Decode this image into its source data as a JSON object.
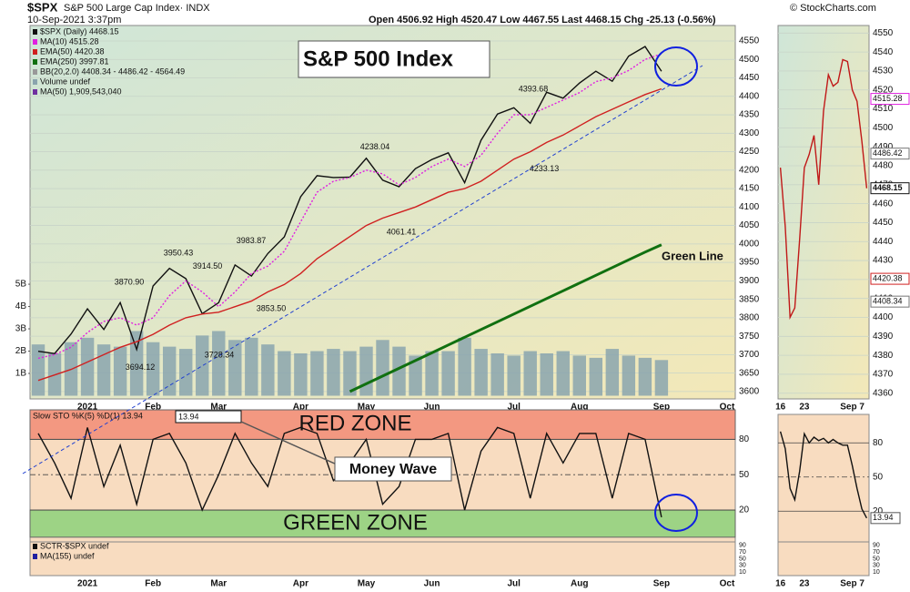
{
  "header": {
    "symbol": "$SPX",
    "name": "S&P 500 Large Cap Index· INDX",
    "datetime": "10-Sep-2021 3:37pm",
    "quote": "Open 4506.92  High 4520.47  Low 4467.55  Last 4468.15  Chg -25.13 (-0.56%)",
    "source": "© StockCharts.com"
  },
  "chart_data": [
    {
      "type": "line",
      "title": "S&P 500 Index",
      "categories": [
        null,
        null,
        null,
        "2021",
        null,
        null,
        null,
        "Feb",
        null,
        null,
        null,
        "Mar",
        null,
        null,
        null,
        null,
        "Apr",
        null,
        null,
        null,
        "May",
        null,
        null,
        null,
        "Jun",
        null,
        null,
        null,
        null,
        "Jul",
        null,
        null,
        null,
        "Aug",
        null,
        null,
        null,
        null,
        "Sep",
        null,
        null,
        null,
        "Oct"
      ],
      "series": [
        {
          "name": "$SPX (Daily) 4468.15",
          "color": "#111111",
          "values": [
            3709,
            3703,
            3756,
            3824,
            3768,
            3841,
            3714,
            3886,
            3934,
            3906,
            3811,
            3841,
            3943,
            3913,
            3974,
            4019,
            4128,
            4185,
            4180,
            4181,
            4232,
            4173,
            4155,
            4204,
            4229,
            4247,
            4166,
            4281,
            4352,
            4369,
            4327,
            4411,
            4395,
            4436,
            4468,
            4441,
            4509,
            4535,
            4468.15,
            null,
            null,
            null,
            null
          ]
        },
        {
          "name": "MA(10) 4515.28",
          "color": "#e020e0",
          "dashed": true,
          "values": [
            3690,
            3700,
            3720,
            3760,
            3790,
            3800,
            3780,
            3800,
            3860,
            3900,
            3870,
            3830,
            3870,
            3920,
            3940,
            3980,
            4060,
            4140,
            4170,
            4180,
            4200,
            4190,
            4160,
            4180,
            4210,
            4230,
            4210,
            4240,
            4300,
            4350,
            4350,
            4370,
            4390,
            4410,
            4440,
            4450,
            4470,
            4500,
            4515.28,
            null,
            null,
            null,
            null
          ]
        },
        {
          "name": "EMA(50) 4420.38",
          "color": "#d02020",
          "values": [
            3630,
            3645,
            3660,
            3680,
            3700,
            3720,
            3735,
            3755,
            3780,
            3800,
            3810,
            3815,
            3830,
            3845,
            3870,
            3890,
            3920,
            3960,
            3990,
            4020,
            4050,
            4070,
            4085,
            4100,
            4120,
            4140,
            4150,
            4170,
            4200,
            4230,
            4250,
            4275,
            4295,
            4320,
            4345,
            4365,
            4385,
            4405,
            4420.38,
            null,
            null,
            null,
            null
          ]
        },
        {
          "name": "EMA(250) 3997.81",
          "color": "#107010",
          "width": 3,
          "values": [
            null,
            null,
            null,
            null,
            null,
            null,
            null,
            null,
            null,
            null,
            null,
            null,
            null,
            null,
            null,
            null,
            null,
            null,
            null,
            3600,
            3621,
            3642,
            3663,
            3684,
            3705,
            3726,
            3747,
            3768,
            3789,
            3810,
            3831,
            3852,
            3873,
            3894,
            3915,
            3936,
            3957,
            3978,
            3997.81,
            null,
            null,
            null,
            null
          ]
        }
      ],
      "volume": {
        "name": "Volume undef",
        "color": "#8aa4ae",
        "axis": "y2",
        "values": [
          2300000000,
          1900000000,
          2400000000,
          2600000000,
          2300000000,
          2200000000,
          2900000000,
          2400000000,
          2200000000,
          2100000000,
          2700000000,
          2900000000,
          2500000000,
          2600000000,
          2300000000,
          2000000000,
          1900000000,
          2000000000,
          2100000000,
          2000000000,
          2200000000,
          2500000000,
          2200000000,
          1800000000,
          2000000000,
          2000000000,
          2600000000,
          2100000000,
          1900000000,
          1800000000,
          2000000000,
          1900000000,
          2000000000,
          1800000000,
          1700000000,
          2100000000,
          1800000000,
          1700000000,
          1600000000,
          null,
          null,
          null,
          null
        ]
      },
      "legend_notes": [
        "BB(20,2.0) 4408.34 - 4486.42 - 4564.49",
        "MA(50) 1,909,543,040"
      ],
      "legend_note_colors": [
        "#999999",
        "#7030a0"
      ],
      "ylim": [
        3580,
        4592
      ],
      "yticks": [
        3600,
        3650,
        3700,
        3750,
        3800,
        3850,
        3900,
        3950,
        4000,
        4050,
        4100,
        4150,
        4200,
        4250,
        4300,
        4350,
        4400,
        4450,
        4500,
        4550
      ],
      "y2lim": [
        0,
        16600000000
      ],
      "y2ticks": [
        {
          "value": 1000000000,
          "label": "1B"
        },
        {
          "value": 2000000000,
          "label": "2B"
        },
        {
          "value": 3000000000,
          "label": "3B"
        },
        {
          "value": 4000000000,
          "label": "4B"
        },
        {
          "value": 5000000000,
          "label": "5B"
        }
      ],
      "grid": true,
      "price_labels": [
        {
          "value": 3870.9,
          "label": "3870.90"
        },
        3950.43,
        {
          "value": 3914.5,
          "label": "3914.50"
        },
        3983.87,
        {
          "value": 3853.5,
          "label": "3853.50"
        },
        3728.34,
        3694.12,
        4238.04,
        4061.41,
        4393.68,
        4233.13
      ],
      "annotation": "Green Line"
    },
    {
      "type": "line",
      "series": [
        {
          "name": "Slow STO %K(5) %D(1) 13.94",
          "color": "#111111",
          "values": [
            85,
            60,
            30,
            90,
            40,
            75,
            25,
            80,
            85,
            60,
            20,
            50,
            85,
            60,
            40,
            85,
            90,
            85,
            45,
            60,
            80,
            25,
            40,
            80,
            80,
            85,
            20,
            70,
            90,
            85,
            30,
            85,
            60,
            85,
            85,
            30,
            85,
            80,
            13.94,
            null,
            null,
            null,
            null
          ]
        }
      ],
      "zones": [
        {
          "label": "RED ZONE",
          "range": [
            80,
            105
          ],
          "color": "#f2907a",
          "label_color": "#e02020"
        },
        {
          "label": "GREEN ZONE",
          "range": [
            -3,
            20
          ],
          "color": "#92d27e",
          "label_color": "#207020"
        }
      ],
      "ylim": [
        -7,
        105
      ],
      "yticks": [
        20,
        50,
        80
      ],
      "grid": true,
      "annotation": "Money Wave"
    },
    {
      "type": "line",
      "categories": [
        null,
        null,
        null,
        "2021",
        null,
        null,
        null,
        "Feb",
        null,
        null,
        null,
        "Mar",
        null,
        null,
        null,
        null,
        "Apr",
        null,
        null,
        null,
        "May",
        null,
        null,
        null,
        "Jun",
        null,
        null,
        null,
        null,
        "Jul",
        null,
        null,
        null,
        "Aug",
        null,
        null,
        null,
        null,
        "Sep",
        null,
        null,
        null,
        "Oct"
      ],
      "legend": [
        "SCTR-$SPX undef",
        "MA(155) undef"
      ],
      "legend_colors": [
        "#111111",
        "#2020a0"
      ],
      "ylim": [
        0,
        100
      ],
      "yticks": [
        90,
        70,
        50,
        30,
        10
      ]
    },
    {
      "type": "line",
      "categories": [
        "16",
        null,
        null,
        null,
        null,
        "23",
        null,
        null,
        null,
        null,
        null,
        null,
        null,
        null,
        null,
        "Sep 7",
        null,
        null,
        null
      ],
      "values": [
        4479,
        4448,
        4400,
        4405,
        4441,
        4479,
        4486,
        4496,
        4470,
        4509,
        4528,
        4522,
        4524,
        4536,
        4535,
        4520,
        4514,
        4493,
        4468.15
      ],
      "color": "#c01818",
      "ylim": [
        4357,
        4554
      ],
      "yticks": [
        4360,
        4370,
        4380,
        4390,
        4400,
        4410,
        4420,
        4430,
        4440,
        4450,
        4460,
        4470,
        4480,
        4490,
        4500,
        4510,
        4520,
        4530,
        4540,
        4550
      ],
      "side_labels": [
        4515.28,
        4486.42,
        4468.15,
        4420.38,
        4408.34
      ],
      "side_label_colors": [
        "#e020e0",
        "#777777",
        "#111111",
        "#d02020",
        "#777777"
      ],
      "grid": true
    },
    {
      "type": "line",
      "values": [
        90,
        75,
        40,
        30,
        55,
        88,
        80,
        85,
        82,
        84,
        80,
        83,
        80,
        78,
        78,
        60,
        40,
        22,
        13.94
      ],
      "color": "#111111",
      "ylim": [
        -7,
        105
      ],
      "yticks": [
        20,
        50,
        80
      ],
      "grid": true
    },
    {
      "type": "line",
      "categories": [
        "16",
        null,
        null,
        null,
        null,
        "23",
        null,
        null,
        null,
        null,
        null,
        null,
        null,
        null,
        null,
        "Sep 7",
        null,
        null,
        null
      ],
      "ylim": [
        0,
        100
      ],
      "yticks": [
        90,
        70,
        50,
        30,
        10
      ]
    }
  ]
}
